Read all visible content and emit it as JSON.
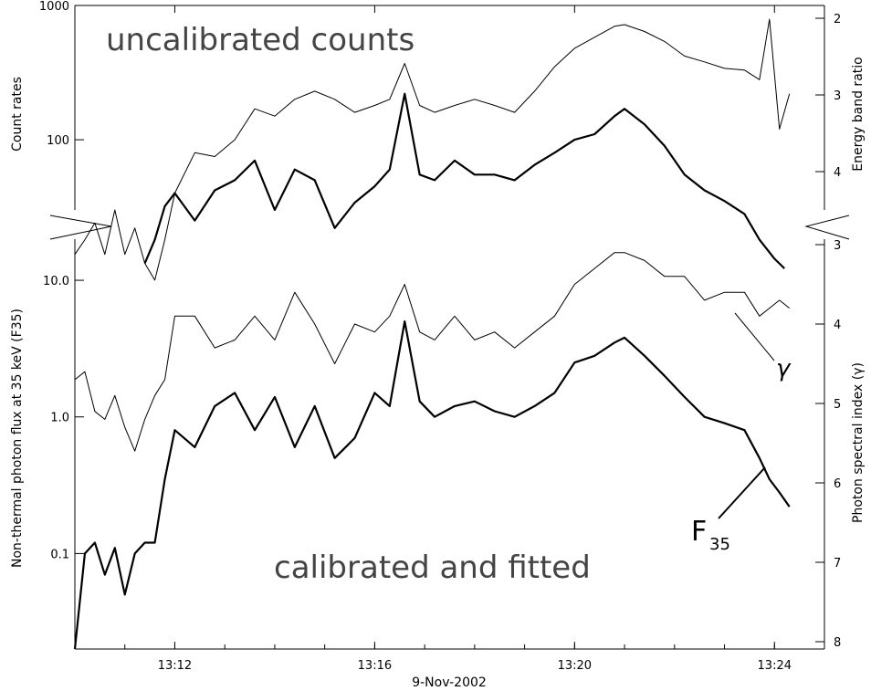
{
  "chart_data": {
    "type": "line",
    "title": "",
    "xlabel": "9-Nov-2002",
    "x_unit": "time",
    "xlim": [
      "13:10",
      "13:25"
    ],
    "x_ticks": [
      "13:12",
      "13:16",
      "13:20",
      "13:24"
    ],
    "labels": {
      "top_panel": "uncalibrated counts",
      "bottom_panel": "calibrated and fitted",
      "gamma": "γ",
      "f35_main": "F",
      "f35_sub": "35"
    },
    "panels": [
      {
        "name": "uncalibrated counts",
        "ylabel_left": "Count rates",
        "ylabel_right": "Energy band ratio",
        "left_axis": {
          "scale": "log",
          "ylim": [
            30,
            1000
          ],
          "ticks": [
            "100",
            "1000"
          ]
        },
        "right_axis": {
          "ticks": [
            "2",
            "3",
            "4"
          ]
        },
        "series": [
          {
            "style": "thin",
            "x": [
              "13:10.0",
              "13:10.2",
              "13:10.4",
              "13:10.6",
              "13:10.8",
              "13:11.0",
              "13:11.2",
              "13:11.4",
              "13:11.6",
              "13:11.8",
              "13:12.0",
              "13:12.4",
              "13:12.8",
              "13:13.2",
              "13:13.6",
              "13:14.0",
              "13:14.4",
              "13:14.8",
              "13:15.2",
              "13:15.6",
              "13:16.0",
              "13:16.3",
              "13:16.6",
              "13:16.9",
              "13:17.2",
              "13:17.6",
              "13:18.0",
              "13:18.4",
              "13:18.8",
              "13:19.2",
              "13:19.6",
              "13:20.0",
              "13:20.4",
              "13:20.8",
              "13:21.0",
              "13:21.4",
              "13:21.8",
              "13:22.2",
              "13:22.6",
              "13:23.0",
              "13:23.4",
              "13:23.7",
              "13:23.9",
              "13:24.1",
              "13:24.3"
            ],
            "y": [
              14,
              18,
              24,
              14,
              30,
              14,
              22,
              12,
              9,
              18,
              40,
              80,
              75,
              100,
              170,
              150,
              200,
              230,
              200,
              160,
              180,
              200,
              370,
              180,
              160,
              180,
              200,
              180,
              160,
              230,
              350,
              480,
              580,
              700,
              720,
              640,
              540,
              420,
              380,
              340,
              330,
              280,
              790,
              120,
              220
            ]
          },
          {
            "style": "thick",
            "x": [
              "13:11.4",
              "13:11.6",
              "13:11.8",
              "13:12.0",
              "13:12.4",
              "13:12.8",
              "13:13.2",
              "13:13.6",
              "13:14.0",
              "13:14.4",
              "13:14.8",
              "13:15.2",
              "13:15.6",
              "13:16.0",
              "13:16.3",
              "13:16.6",
              "13:16.9",
              "13:17.2",
              "13:17.6",
              "13:18.0",
              "13:18.4",
              "13:18.8",
              "13:19.2",
              "13:19.6",
              "13:20.0",
              "13:20.4",
              "13:20.8",
              "13:21.0",
              "13:21.4",
              "13:21.8",
              "13:22.2",
              "13:22.6",
              "13:23.0",
              "13:23.4",
              "13:23.7",
              "13:24.0",
              "13:24.2"
            ],
            "y": [
              12,
              18,
              32,
              40,
              25,
              42,
              50,
              70,
              30,
              60,
              50,
              22,
              34,
              45,
              60,
              220,
              55,
              50,
              70,
              55,
              55,
              50,
              65,
              80,
              100,
              110,
              150,
              170,
              130,
              90,
              55,
              42,
              35,
              28,
              18,
              13,
              11
            ]
          }
        ]
      },
      {
        "name": "calibrated and fitted",
        "ylabel_left": "Non-thermal photon flux at 35 keV (F35)",
        "ylabel_right": "Photon spectral index (γ)",
        "left_axis": {
          "scale": "log",
          "ylim": [
            0.02,
            20
          ],
          "ticks": [
            "0.1",
            "1.0",
            "10.0"
          ]
        },
        "right_axis": {
          "ticks": [
            "3",
            "4",
            "5",
            "6",
            "7",
            "8"
          ]
        },
        "series": [
          {
            "style": "thin",
            "name": "γ",
            "x": [
              "13:10.0",
              "13:10.2",
              "13:10.4",
              "13:10.6",
              "13:10.8",
              "13:11.0",
              "13:11.2",
              "13:11.4",
              "13:11.6",
              "13:11.8",
              "13:12.0",
              "13:12.4",
              "13:12.8",
              "13:13.2",
              "13:13.6",
              "13:14.0",
              "13:14.4",
              "13:14.8",
              "13:15.2",
              "13:15.6",
              "13:16.0",
              "13:16.3",
              "13:16.6",
              "13:16.9",
              "13:17.2",
              "13:17.6",
              "13:18.0",
              "13:18.4",
              "13:18.8",
              "13:19.2",
              "13:19.6",
              "13:20.0",
              "13:20.4",
              "13:20.8",
              "13:21.0",
              "13:21.4",
              "13:21.8",
              "13:22.2",
              "13:22.6",
              "13:23.0",
              "13:23.4",
              "13:23.7",
              "13:23.9",
              "13:24.1",
              "13:24.3"
            ],
            "y": [
              4.7,
              4.6,
              5.1,
              5.2,
              4.9,
              5.3,
              5.6,
              5.2,
              4.9,
              4.7,
              3.9,
              3.9,
              4.3,
              4.2,
              3.9,
              4.2,
              3.6,
              4.0,
              4.5,
              4.0,
              4.1,
              3.9,
              3.5,
              4.1,
              4.2,
              3.9,
              4.2,
              4.1,
              4.3,
              4.1,
              3.9,
              3.5,
              3.3,
              3.1,
              3.1,
              3.2,
              3.4,
              3.4,
              3.7,
              3.6,
              3.6,
              3.9,
              3.8,
              3.7,
              3.8
            ]
          },
          {
            "style": "thick",
            "name": "F35",
            "x": [
              "13:10.0",
              "13:10.2",
              "13:10.4",
              "13:10.6",
              "13:10.8",
              "13:11.0",
              "13:11.2",
              "13:11.4",
              "13:11.6",
              "13:11.8",
              "13:12.0",
              "13:12.4",
              "13:12.8",
              "13:13.2",
              "13:13.6",
              "13:14.0",
              "13:14.4",
              "13:14.8",
              "13:15.2",
              "13:15.6",
              "13:16.0",
              "13:16.3",
              "13:16.6",
              "13:16.9",
              "13:17.2",
              "13:17.6",
              "13:18.0",
              "13:18.4",
              "13:18.8",
              "13:19.2",
              "13:19.6",
              "13:20.0",
              "13:20.4",
              "13:20.8",
              "13:21.0",
              "13:21.4",
              "13:21.8",
              "13:22.2",
              "13:22.6",
              "13:23.0",
              "13:23.4",
              "13:23.7",
              "13:23.9",
              "13:24.1",
              "13:24.3"
            ],
            "y": [
              0.02,
              0.1,
              0.12,
              0.07,
              0.11,
              0.05,
              0.1,
              0.12,
              0.12,
              0.35,
              0.8,
              0.6,
              1.2,
              1.5,
              0.8,
              1.4,
              0.6,
              1.2,
              0.5,
              0.7,
              1.5,
              1.2,
              5.0,
              1.3,
              1.0,
              1.2,
              1.3,
              1.1,
              1.0,
              1.2,
              1.5,
              2.5,
              2.8,
              3.5,
              3.8,
              2.8,
              2.0,
              1.4,
              1.0,
              0.9,
              0.8,
              0.5,
              0.35,
              0.28,
              0.22
            ]
          }
        ]
      }
    ]
  }
}
